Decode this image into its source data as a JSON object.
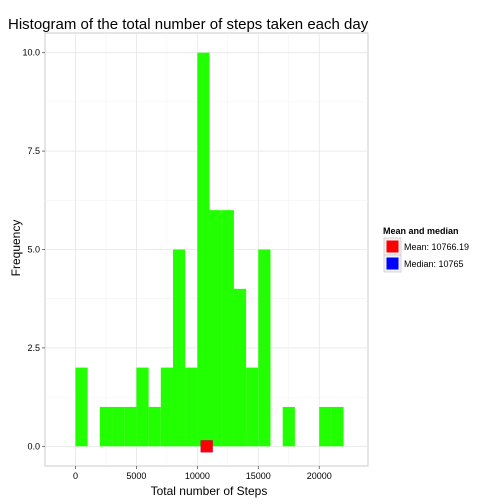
{
  "chart_data": {
    "type": "bar",
    "title": "Histogram of the total number of steps taken each day",
    "xlabel": "Total number of Steps",
    "ylabel": "Frequency",
    "xlim": [
      -2500,
      24000
    ],
    "ylim": [
      -0.5,
      10.5
    ],
    "xticks": [
      0,
      5000,
      10000,
      15000,
      20000
    ],
    "xtick_labels": [
      "0",
      "5000",
      "10000",
      "15000",
      "20000"
    ],
    "yticks": [
      0,
      2.5,
      5,
      7.5,
      10
    ],
    "ytick_labels": [
      "0.0",
      "2.5",
      "5.0",
      "7.5",
      "10.0"
    ],
    "grid": true,
    "bar_color": "#22ff00",
    "bins": [
      {
        "start": 0,
        "end": 1000,
        "count": 2
      },
      {
        "start": 2000,
        "end": 3000,
        "count": 1
      },
      {
        "start": 3000,
        "end": 4000,
        "count": 1
      },
      {
        "start": 4000,
        "end": 5000,
        "count": 1
      },
      {
        "start": 5000,
        "end": 6000,
        "count": 2
      },
      {
        "start": 6000,
        "end": 7000,
        "count": 1
      },
      {
        "start": 7000,
        "end": 8000,
        "count": 2
      },
      {
        "start": 8000,
        "end": 9000,
        "count": 5
      },
      {
        "start": 9000,
        "end": 10000,
        "count": 2
      },
      {
        "start": 10000,
        "end": 11000,
        "count": 10
      },
      {
        "start": 11000,
        "end": 12000,
        "count": 6
      },
      {
        "start": 12000,
        "end": 13000,
        "count": 6
      },
      {
        "start": 13000,
        "end": 14000,
        "count": 4
      },
      {
        "start": 14000,
        "end": 15000,
        "count": 2
      },
      {
        "start": 15000,
        "end": 16000,
        "count": 5
      },
      {
        "start": 17000,
        "end": 18000,
        "count": 1
      },
      {
        "start": 20000,
        "end": 21000,
        "count": 1
      },
      {
        "start": 21000,
        "end": 22000,
        "count": 1
      }
    ],
    "markers": [
      {
        "name": "Mean",
        "x": 10766.19,
        "y": 0,
        "color": "#ff0000"
      },
      {
        "name": "Median",
        "x": 10765,
        "y": 0,
        "color": "#0000ff"
      }
    ],
    "legend": {
      "title": "Mean and median",
      "position": "right",
      "entries": [
        {
          "label": "Mean: 10766.19",
          "color": "#ff0000"
        },
        {
          "label": "Median: 10765",
          "color": "#0000ff"
        }
      ]
    }
  }
}
